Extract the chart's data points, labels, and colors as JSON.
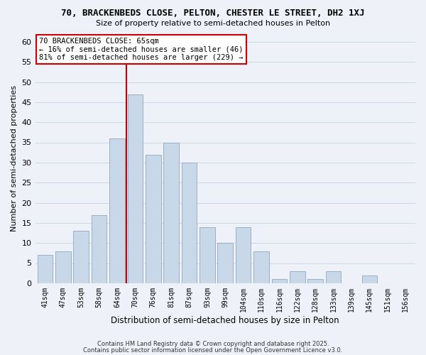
{
  "title": "70, BRACKENBEDS CLOSE, PELTON, CHESTER LE STREET, DH2 1XJ",
  "subtitle": "Size of property relative to semi-detached houses in Pelton",
  "xlabel": "Distribution of semi-detached houses by size in Pelton",
  "ylabel": "Number of semi-detached properties",
  "bar_color": "#c8d8e8",
  "bar_edge_color": "#9ab0c8",
  "categories": [
    "41sqm",
    "47sqm",
    "53sqm",
    "58sqm",
    "64sqm",
    "70sqm",
    "76sqm",
    "81sqm",
    "87sqm",
    "93sqm",
    "99sqm",
    "104sqm",
    "110sqm",
    "116sqm",
    "122sqm",
    "128sqm",
    "133sqm",
    "139sqm",
    "145sqm",
    "151sqm",
    "156sqm"
  ],
  "values": [
    7,
    8,
    13,
    17,
    36,
    47,
    32,
    35,
    30,
    14,
    10,
    14,
    8,
    1,
    3,
    1,
    3,
    0,
    2,
    0,
    0
  ],
  "ylim": [
    0,
    62
  ],
  "yticks": [
    0,
    5,
    10,
    15,
    20,
    25,
    30,
    35,
    40,
    45,
    50,
    55,
    60
  ],
  "vline_x": 4.5,
  "vline_color": "#cc0000",
  "annotation_title": "70 BRACKENBEDS CLOSE: 65sqm",
  "annotation_line1": "← 16% of semi-detached houses are smaller (46)",
  "annotation_line2": "81% of semi-detached houses are larger (229) →",
  "annotation_box_color": "#ffffff",
  "annotation_box_edge": "#cc0000",
  "grid_color": "#d0d8e8",
  "background_color": "#eef2f8",
  "footer1": "Contains HM Land Registry data © Crown copyright and database right 2025.",
  "footer2": "Contains public sector information licensed under the Open Government Licence v3.0."
}
